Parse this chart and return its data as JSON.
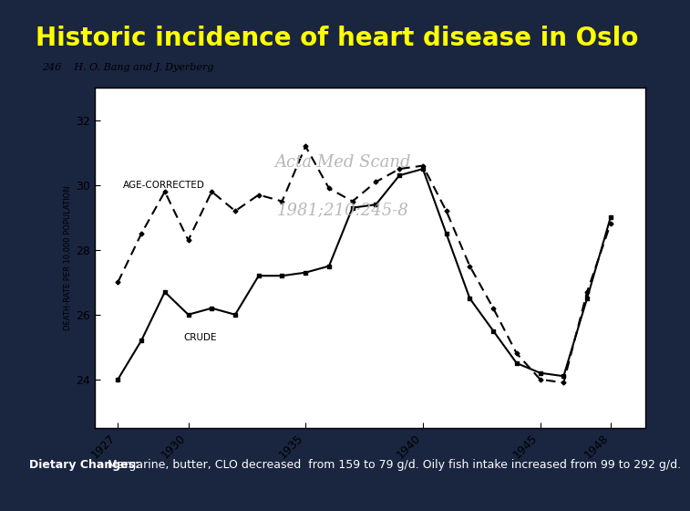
{
  "title": "Historic incidence of heart disease in Oslo",
  "title_color": "#FFFF00",
  "title_bg_color": "#1a2540",
  "subtitle_line1": "Acta Med Scand",
  "subtitle_line2": "1981;210:245-8",
  "author_line": "246    H. O. Bang and J. Dyerberg",
  "ylabel": "DEATH-RATE PER 10,000 POPULATION",
  "bottom_text_bold": "Dietary Changes:",
  "bottom_text": " Margarine, butter, CLO decreased  from 159 to 79 g/d. Oily fish intake increased from 99 to 292 g/d.",
  "bottom_bg_color": "#3a4f8c",
  "bottom_text_color": "#ffffff",
  "chart_bg_color": "#ffffff",
  "main_bg_color": "#1a2540",
  "yticks": [
    24,
    26,
    28,
    30,
    32
  ],
  "ylim": [
    22.5,
    33
  ],
  "xtick_labels": [
    "1927",
    "1930",
    "1935",
    "1940",
    "1945",
    "1948"
  ],
  "crude_x": [
    1927,
    1928,
    1929,
    1930,
    1931,
    1932,
    1933,
    1934,
    1935,
    1936,
    1937,
    1938,
    1939,
    1940,
    1941,
    1942,
    1943,
    1944,
    1945,
    1946,
    1947,
    1948
  ],
  "crude_y": [
    24.0,
    25.2,
    26.7,
    26.0,
    26.2,
    26.0,
    27.2,
    27.2,
    27.3,
    27.5,
    29.3,
    29.4,
    30.3,
    30.5,
    28.5,
    26.5,
    25.5,
    24.5,
    24.2,
    24.1,
    26.5,
    29.0
  ],
  "age_corrected_x": [
    1927,
    1928,
    1929,
    1930,
    1931,
    1932,
    1933,
    1934,
    1935,
    1936,
    1937,
    1938,
    1939,
    1940,
    1941,
    1942,
    1943,
    1944,
    1945,
    1946,
    1947,
    1948
  ],
  "age_corrected_y": [
    27.0,
    28.5,
    29.8,
    28.3,
    29.8,
    29.2,
    29.7,
    29.5,
    31.2,
    29.9,
    29.5,
    30.1,
    30.5,
    30.6,
    29.2,
    27.5,
    26.2,
    24.8,
    24.0,
    23.9,
    26.7,
    28.8
  ],
  "crude_label": "CRUDE",
  "age_corrected_label": "AGE-CORRECTED",
  "line_color": "#000000",
  "line_width": 1.5,
  "subtitle_color": "#b0b0b0"
}
